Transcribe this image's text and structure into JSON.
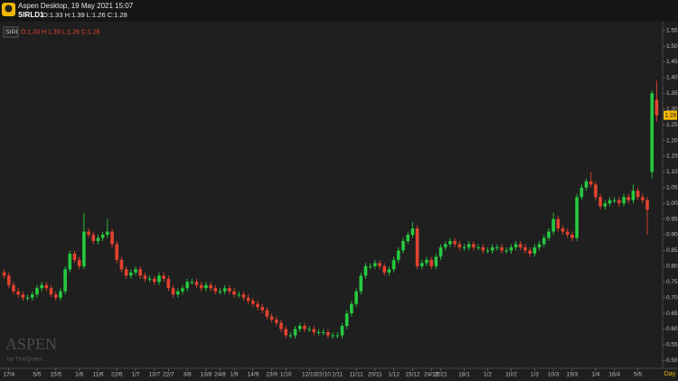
{
  "header": {
    "title": "Aspen Desktop, 19 May 2021 15:07",
    "symbol": "SIRLD1",
    "ohlc": "O:1.33 H:1.39 L:1.26 C:1.28"
  },
  "watermark": {
    "brand": "ASPEN",
    "by": "by ThaiQuest"
  },
  "chart_data": {
    "type": "candlestick",
    "legend": {
      "symbol": "SIRI",
      "ohlc": "O:1.33 H:1.39 L:1.26 C:1.28"
    },
    "period_label": "Day",
    "up_color": "#26c93f",
    "down_color": "#e2432f",
    "last_price": 1.28,
    "categories": [
      null,
      "17/4",
      null,
      null,
      null,
      null,
      null,
      "5/5",
      null,
      null,
      null,
      "15/5",
      null,
      null,
      null,
      null,
      "1/6",
      null,
      null,
      null,
      "11/6",
      null,
      null,
      null,
      "22/6",
      null,
      null,
      null,
      "1/7",
      null,
      null,
      null,
      "13/7",
      null,
      null,
      "22/7",
      null,
      null,
      null,
      "3/8",
      null,
      null,
      null,
      "13/8",
      null,
      null,
      "24/8",
      null,
      null,
      "1/9",
      null,
      null,
      null,
      "14/9",
      null,
      null,
      null,
      "23/9",
      null,
      null,
      "1/10",
      null,
      null,
      null,
      null,
      "12/10",
      null,
      null,
      "22/10",
      null,
      null,
      "2/11",
      null,
      null,
      null,
      "11/11",
      null,
      null,
      null,
      "20/11",
      null,
      null,
      null,
      "1/12",
      null,
      null,
      null,
      "15/12",
      null,
      null,
      null,
      "24/12",
      null,
      "2021",
      null,
      null,
      null,
      null,
      "18/1",
      null,
      null,
      null,
      null,
      "1/2",
      null,
      null,
      null,
      null,
      "10/2",
      null,
      null,
      null,
      null,
      "1/3",
      null,
      null,
      null,
      "10/3",
      null,
      null,
      null,
      "19/3",
      null,
      null,
      null,
      null,
      "1/4",
      null,
      null,
      null,
      "16/4",
      null,
      null,
      null,
      null,
      "5/5",
      null,
      null,
      null,
      null
    ],
    "open": [
      0.78,
      0.77,
      0.74,
      0.72,
      0.71,
      0.7,
      0.7,
      0.71,
      0.73,
      0.74,
      0.73,
      0.71,
      0.7,
      0.72,
      0.79,
      0.84,
      0.82,
      0.8,
      0.91,
      0.9,
      0.88,
      0.89,
      0.9,
      0.91,
      0.87,
      0.82,
      0.79,
      0.77,
      0.78,
      0.79,
      0.77,
      0.76,
      0.76,
      0.75,
      0.77,
      0.76,
      0.73,
      0.71,
      0.72,
      0.73,
      0.75,
      0.75,
      0.74,
      0.73,
      0.74,
      0.73,
      0.72,
      0.72,
      0.73,
      0.72,
      0.71,
      0.71,
      0.7,
      0.69,
      0.68,
      0.67,
      0.66,
      0.64,
      0.63,
      0.62,
      0.6,
      0.58,
      0.58,
      0.6,
      0.61,
      0.6,
      0.6,
      0.59,
      0.59,
      0.59,
      0.58,
      0.58,
      0.58,
      0.61,
      0.65,
      0.68,
      0.72,
      0.77,
      0.8,
      0.8,
      0.81,
      0.8,
      0.78,
      0.79,
      0.82,
      0.85,
      0.88,
      0.9,
      0.92,
      0.8,
      0.81,
      0.82,
      0.8,
      0.83,
      0.86,
      0.87,
      0.88,
      0.87,
      0.86,
      0.86,
      0.87,
      0.86,
      0.86,
      0.85,
      0.85,
      0.86,
      0.86,
      0.85,
      0.85,
      0.86,
      0.87,
      0.86,
      0.85,
      0.84,
      0.86,
      0.87,
      0.89,
      0.91,
      0.95,
      0.92,
      0.91,
      0.9,
      0.89,
      1.02,
      1.05,
      1.07,
      1.06,
      1.02,
      0.99,
      1.0,
      1.01,
      1.01,
      1.0,
      1.02,
      1.01,
      1.04,
      1.02,
      1.01,
      1.1,
      1.33
    ],
    "high": [
      0.79,
      0.78,
      0.75,
      0.73,
      0.72,
      0.71,
      0.72,
      0.74,
      0.75,
      0.75,
      0.74,
      0.72,
      0.73,
      0.8,
      0.85,
      0.85,
      0.83,
      0.97,
      0.92,
      0.91,
      0.9,
      0.91,
      0.95,
      0.92,
      0.88,
      0.83,
      0.8,
      0.79,
      0.8,
      0.8,
      0.78,
      0.77,
      0.77,
      0.78,
      0.78,
      0.77,
      0.74,
      0.73,
      0.74,
      0.76,
      0.76,
      0.76,
      0.75,
      0.75,
      0.75,
      0.74,
      0.73,
      0.74,
      0.74,
      0.73,
      0.72,
      0.72,
      0.71,
      0.7,
      0.69,
      0.68,
      0.67,
      0.65,
      0.64,
      0.63,
      0.61,
      0.59,
      0.61,
      0.62,
      0.62,
      0.61,
      0.61,
      0.6,
      0.6,
      0.6,
      0.59,
      0.59,
      0.62,
      0.66,
      0.69,
      0.73,
      0.78,
      0.81,
      0.81,
      0.82,
      0.82,
      0.81,
      0.8,
      0.83,
      0.86,
      0.89,
      0.91,
      0.94,
      0.93,
      0.82,
      0.83,
      0.83,
      0.84,
      0.87,
      0.88,
      0.89,
      0.89,
      0.88,
      0.87,
      0.88,
      0.88,
      0.87,
      0.87,
      0.86,
      0.87,
      0.87,
      0.87,
      0.86,
      0.87,
      0.88,
      0.88,
      0.87,
      0.86,
      0.87,
      0.88,
      0.9,
      0.92,
      0.97,
      0.96,
      0.93,
      0.92,
      0.91,
      1.03,
      1.06,
      1.08,
      1.1,
      1.07,
      1.03,
      1.01,
      1.02,
      1.02,
      1.02,
      1.03,
      1.03,
      1.06,
      1.05,
      1.03,
      1.02,
      1.36,
      1.39
    ],
    "low": [
      0.76,
      0.73,
      0.71,
      0.7,
      0.69,
      0.69,
      0.69,
      0.7,
      0.72,
      0.72,
      0.7,
      0.69,
      0.69,
      0.71,
      0.78,
      0.81,
      0.79,
      0.79,
      0.89,
      0.87,
      0.87,
      0.88,
      0.89,
      0.86,
      0.81,
      0.78,
      0.76,
      0.76,
      0.77,
      0.76,
      0.75,
      0.75,
      0.74,
      0.74,
      0.75,
      0.72,
      0.7,
      0.7,
      0.71,
      0.72,
      0.74,
      0.73,
      0.72,
      0.72,
      0.72,
      0.71,
      0.71,
      0.71,
      0.71,
      0.7,
      0.7,
      0.69,
      0.68,
      0.67,
      0.66,
      0.65,
      0.63,
      0.62,
      0.61,
      0.59,
      0.57,
      0.57,
      0.57,
      0.59,
      0.59,
      0.59,
      0.58,
      0.58,
      0.58,
      0.57,
      0.57,
      0.57,
      0.57,
      0.6,
      0.64,
      0.67,
      0.71,
      0.76,
      0.79,
      0.79,
      0.79,
      0.77,
      0.77,
      0.78,
      0.81,
      0.84,
      0.87,
      0.89,
      0.79,
      0.79,
      0.8,
      0.79,
      0.79,
      0.82,
      0.85,
      0.86,
      0.86,
      0.85,
      0.85,
      0.85,
      0.85,
      0.85,
      0.84,
      0.84,
      0.84,
      0.85,
      0.84,
      0.84,
      0.84,
      0.85,
      0.85,
      0.84,
      0.83,
      0.83,
      0.85,
      0.86,
      0.88,
      0.9,
      0.91,
      0.9,
      0.89,
      0.88,
      0.88,
      1.01,
      1.04,
      1.05,
      1.01,
      0.98,
      0.98,
      0.99,
      1.0,
      0.99,
      0.99,
      1.0,
      1.0,
      1.01,
      1.0,
      0.9,
      1.08,
      1.26
    ],
    "close": [
      0.77,
      0.74,
      0.72,
      0.71,
      0.7,
      0.7,
      0.71,
      0.73,
      0.74,
      0.73,
      0.71,
      0.7,
      0.72,
      0.79,
      0.84,
      0.82,
      0.8,
      0.91,
      0.9,
      0.88,
      0.89,
      0.9,
      0.91,
      0.87,
      0.82,
      0.79,
      0.77,
      0.78,
      0.79,
      0.77,
      0.76,
      0.76,
      0.75,
      0.77,
      0.76,
      0.73,
      0.71,
      0.72,
      0.73,
      0.75,
      0.75,
      0.74,
      0.73,
      0.74,
      0.73,
      0.72,
      0.72,
      0.73,
      0.72,
      0.71,
      0.71,
      0.7,
      0.69,
      0.68,
      0.67,
      0.66,
      0.64,
      0.63,
      0.62,
      0.6,
      0.58,
      0.58,
      0.6,
      0.61,
      0.6,
      0.6,
      0.59,
      0.59,
      0.59,
      0.58,
      0.58,
      0.58,
      0.61,
      0.65,
      0.68,
      0.72,
      0.77,
      0.8,
      0.8,
      0.81,
      0.8,
      0.78,
      0.79,
      0.82,
      0.85,
      0.88,
      0.9,
      0.92,
      0.8,
      0.81,
      0.82,
      0.8,
      0.83,
      0.86,
      0.87,
      0.88,
      0.87,
      0.86,
      0.86,
      0.87,
      0.86,
      0.86,
      0.85,
      0.85,
      0.86,
      0.86,
      0.85,
      0.85,
      0.86,
      0.87,
      0.86,
      0.85,
      0.84,
      0.86,
      0.87,
      0.89,
      0.91,
      0.95,
      0.92,
      0.91,
      0.9,
      0.89,
      1.02,
      1.05,
      1.07,
      1.06,
      1.02,
      0.99,
      1.0,
      1.01,
      1.01,
      1.0,
      1.02,
      1.01,
      1.04,
      1.02,
      1.01,
      0.98,
      1.35,
      1.28
    ],
    "ylim": [
      0.475,
      1.575
    ],
    "yticks": [
      {
        "value": 0.5,
        "label": "0.50"
      },
      {
        "value": 0.55,
        "label": "0.55"
      },
      {
        "value": 0.6,
        "label": "0.60"
      },
      {
        "value": 0.65,
        "label": "0.65"
      },
      {
        "value": 0.7,
        "label": "0.70"
      },
      {
        "value": 0.75,
        "label": "0.75"
      },
      {
        "value": 0.8,
        "label": "0.80"
      },
      {
        "value": 0.85,
        "label": "0.85"
      },
      {
        "value": 0.9,
        "label": "0.90"
      },
      {
        "value": 0.95,
        "label": "0.95"
      },
      {
        "value": 1.0,
        "label": "1.00"
      },
      {
        "value": 1.05,
        "label": "1.05"
      },
      {
        "value": 1.1,
        "label": "1.10"
      },
      {
        "value": 1.15,
        "label": "1.15"
      },
      {
        "value": 1.2,
        "label": "1.20"
      },
      {
        "value": 1.25,
        "label": "1.25"
      },
      {
        "value": 1.3,
        "label": "1.30"
      },
      {
        "value": 1.35,
        "label": "1.35"
      },
      {
        "value": 1.4,
        "label": "1.40"
      },
      {
        "value": 1.45,
        "label": "1.45"
      },
      {
        "value": 1.5,
        "label": "1.50"
      },
      {
        "value": 1.55,
        "label": "1.55"
      }
    ],
    "grid": false
  }
}
